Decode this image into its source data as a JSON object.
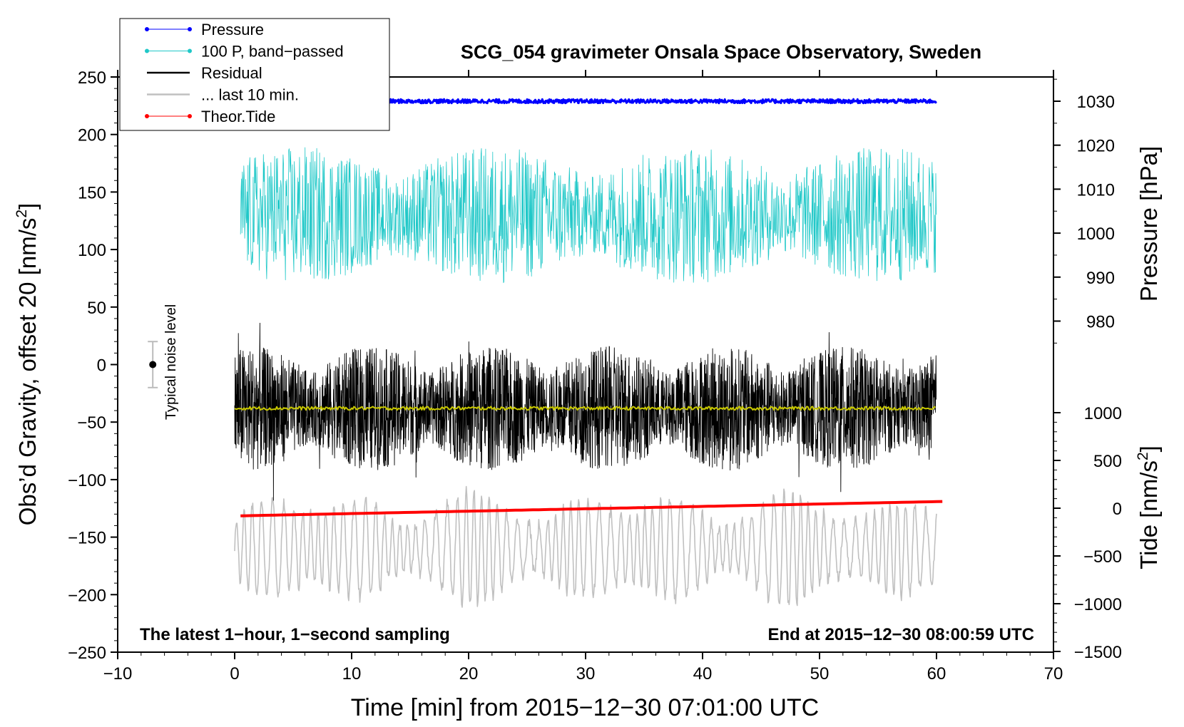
{
  "chart_data": {
    "type": "line",
    "title": "SCG_054 gravimeter Onsala Space Observatory, Sweden",
    "xlabel": "Time [min] from 2015−12−30 07:01:00 UTC",
    "ylabel": "Obs’d Gravity, offset 20 [nm/s",
    "ylabel_sup": "2",
    "ylabel_end": "]",
    "y2label": "Pressure [hPa]",
    "y3label": "Tide [nm/s",
    "y3label_sup": "2",
    "y3label_end": "]",
    "xlim": [
      -10,
      70
    ],
    "ylim": [
      -250,
      250
    ],
    "pressure_lim": [
      970,
      1035
    ],
    "tide_lim": [
      -1500,
      1500
    ],
    "x_ticks": [
      "−10",
      "0",
      "10",
      "20",
      "30",
      "40",
      "50",
      "60",
      "70"
    ],
    "y_ticks": [
      "250",
      "200",
      "150",
      "100",
      "50",
      "0",
      "−50",
      "−100",
      "−150",
      "−200",
      "−250"
    ],
    "pressure_ticks": [
      "1030",
      "1020",
      "1010",
      "1000",
      "990",
      "980"
    ],
    "tide_ticks": [
      "1000",
      "500",
      "0",
      "−500",
      "−1000",
      "−1500"
    ],
    "annotation_left": "The latest 1−hour, 1−second sampling",
    "annotation_right": "End at 2015−12−30 08:00:59 UTC",
    "noise_label": "Typical noise level",
    "noise_bar": {
      "x": -7,
      "y": 0,
      "half_range": 20
    },
    "legend": [
      {
        "name": "Pressure",
        "color": "#0000ff",
        "marker": "dot"
      },
      {
        "name": "100 P, band−passed",
        "color": "#20c8c8",
        "marker": "dot"
      },
      {
        "name": "Residual",
        "color": "#000000",
        "marker": "line"
      },
      {
        "name": "... last 10 min.",
        "color": "#c0c0c0",
        "marker": "line"
      },
      {
        "name": "Theor.Tide",
        "color": "#ff0000",
        "marker": "dot"
      }
    ],
    "series": [
      {
        "name": "Pressure",
        "axis": "pressure",
        "x_range": [
          1,
          60
        ],
        "approx_level": 1030,
        "color": "#0000ff"
      },
      {
        "name": "100 P, band−passed",
        "axis": "gravity",
        "x_range": [
          0.5,
          60
        ],
        "approx_level": 130,
        "approx_amplitude": 60,
        "color": "#20c8c8"
      },
      {
        "name": "Residual",
        "axis": "gravity",
        "x_range": [
          0,
          60
        ],
        "approx_level": -38,
        "approx_amplitude": 60,
        "color": "#000000"
      },
      {
        "name": "Residual mean",
        "axis": "gravity",
        "x_range": [
          0,
          60
        ],
        "approx_level": -38,
        "color": "#c8c800"
      },
      {
        "name": "... last 10 min.",
        "axis": "gravity",
        "x_range": [
          0,
          60
        ],
        "approx_level": -160,
        "approx_amplitude": 40,
        "color": "#c0c0c0"
      },
      {
        "name": "Theor.Tide",
        "axis": "tide",
        "x": [
          0.5,
          60.5
        ],
        "values": [
          -80,
          70
        ],
        "color": "#ff0000"
      }
    ]
  }
}
